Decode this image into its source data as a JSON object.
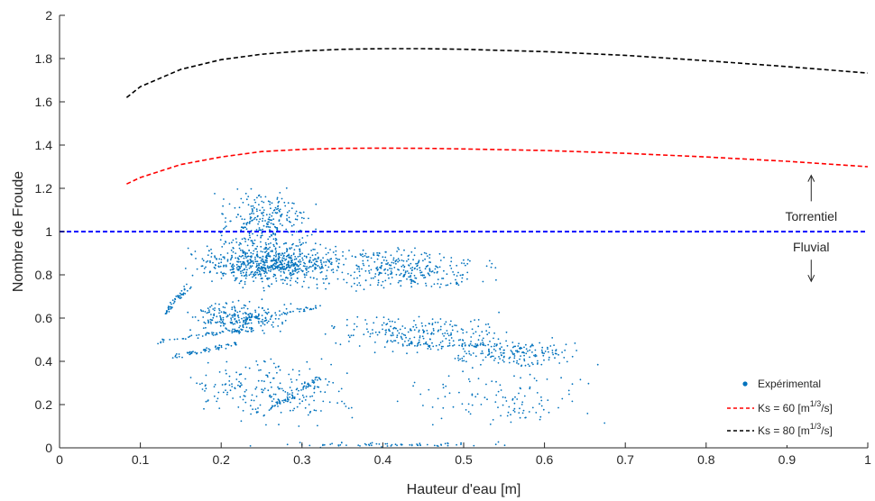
{
  "chart_data": {
    "type": "scatter",
    "title": "",
    "xlabel": "Hauteur d'eau [m]",
    "ylabel": "Nombre de Froude",
    "xlim": [
      0,
      1
    ],
    "ylim": [
      0,
      2
    ],
    "x_ticks": [
      0,
      0.1,
      0.2,
      0.3,
      0.4,
      0.5,
      0.6,
      0.7,
      0.8,
      0.9,
      1
    ],
    "x_tick_labels": [
      "0",
      "0.1",
      "0.2",
      "0.3",
      "0.4",
      "0.5",
      "0.6",
      "0.7",
      "0.8",
      "0.9",
      "1"
    ],
    "y_ticks": [
      0,
      0.2,
      0.4,
      0.6,
      0.8,
      1,
      1.2,
      1.4,
      1.6,
      1.8,
      2
    ],
    "y_tick_labels": [
      "0",
      "0.2",
      "0.4",
      "0.6",
      "0.8",
      "1",
      "1.2",
      "1.4",
      "1.6",
      "1.8",
      "2"
    ],
    "grid": false,
    "legend_position": "bottom-right",
    "series": [
      {
        "name": "Expérimental",
        "kind": "scatter",
        "color": "#0072BD",
        "clusters": [
          {
            "x": [
              0.14,
              0.38
            ],
            "y": [
              0.72,
              0.98
            ],
            "weight": 0.3
          },
          {
            "x": [
              0.18,
              0.33
            ],
            "y": [
              0.85,
              1.25
            ],
            "weight": 0.12
          },
          {
            "x": [
              0.3,
              0.56
            ],
            "y": [
              0.7,
              0.95
            ],
            "weight": 0.13
          },
          {
            "x": [
              0.14,
              0.3
            ],
            "y": [
              0.5,
              0.7
            ],
            "weight": 0.1
          },
          {
            "x": [
              0.3,
              0.6
            ],
            "y": [
              0.4,
              0.65
            ],
            "weight": 0.1
          },
          {
            "x": [
              0.45,
              0.68
            ],
            "y": [
              0.35,
              0.52
            ],
            "weight": 0.07
          },
          {
            "x": [
              0.12,
              0.4
            ],
            "y": [
              0.05,
              0.5
            ],
            "weight": 0.1
          },
          {
            "x": [
              0.4,
              0.69
            ],
            "y": [
              0.05,
              0.4
            ],
            "weight": 0.05
          },
          {
            "x": [
              0.2,
              0.6
            ],
            "y": [
              0.0,
              0.03
            ],
            "weight": 0.03
          }
        ],
        "streaks": [
          {
            "x": [
              0.12,
              0.24
            ],
            "y": [
              0.49,
              0.55
            ]
          },
          {
            "x": [
              0.14,
              0.22
            ],
            "y": [
              0.42,
              0.48
            ]
          },
          {
            "x": [
              0.13,
              0.16
            ],
            "y": [
              0.62,
              0.75
            ]
          },
          {
            "x": [
              0.2,
              0.32
            ],
            "y": [
              0.58,
              0.65
            ]
          },
          {
            "x": [
              0.26,
              0.32
            ],
            "y": [
              0.18,
              0.32
            ]
          },
          {
            "x": [
              0.43,
              0.6
            ],
            "y": [
              0.48,
              0.47
            ]
          },
          {
            "x": [
              0.25,
              0.4
            ],
            "y": [
              0.82,
              0.9
            ]
          }
        ],
        "n_points": 2600
      },
      {
        "name": "Ks = 60 [m^1/3/s]",
        "kind": "line",
        "style": "dashed",
        "color": "#FF0000",
        "x": [
          0.083,
          0.1,
          0.15,
          0.2,
          0.25,
          0.3,
          0.35,
          0.4,
          0.45,
          0.5,
          0.6,
          0.7,
          0.8,
          0.9,
          1.0
        ],
        "y": [
          1.22,
          1.25,
          1.31,
          1.345,
          1.37,
          1.38,
          1.385,
          1.386,
          1.385,
          1.382,
          1.375,
          1.362,
          1.345,
          1.325,
          1.3
        ]
      },
      {
        "name": "Ks = 80 [m^1/3/s]",
        "kind": "line",
        "style": "dashed",
        "color": "#000000",
        "x": [
          0.083,
          0.1,
          0.15,
          0.2,
          0.25,
          0.3,
          0.35,
          0.4,
          0.45,
          0.5,
          0.6,
          0.7,
          0.8,
          0.9,
          1.0
        ],
        "y": [
          1.62,
          1.67,
          1.75,
          1.795,
          1.82,
          1.835,
          1.843,
          1.846,
          1.846,
          1.843,
          1.832,
          1.815,
          1.79,
          1.763,
          1.733
        ]
      }
    ],
    "reference_line": {
      "y": 1,
      "color": "#0000FF",
      "style": "dashed"
    },
    "annotations": [
      {
        "text": "Torrentiel",
        "x": 0.93,
        "y": 1.07,
        "arrow": "up",
        "arrow_from": 1.14,
        "arrow_to": 1.26
      },
      {
        "text": "Fluvial",
        "x": 0.93,
        "y": 0.93,
        "arrow": "down",
        "arrow_from": 0.87,
        "arrow_to": 0.77
      }
    ],
    "legend": [
      {
        "label": "Expérimental",
        "marker": "dot",
        "color": "#0072BD"
      },
      {
        "label_main": "Ks = 60 [m",
        "label_sup": "1/3",
        "label_tail": "/s]",
        "marker": "dashed-line",
        "color": "#FF0000"
      },
      {
        "label_main": "Ks = 80 [m",
        "label_sup": "1/3",
        "label_tail": "/s]",
        "marker": "dashed-line",
        "color": "#000000"
      }
    ]
  }
}
